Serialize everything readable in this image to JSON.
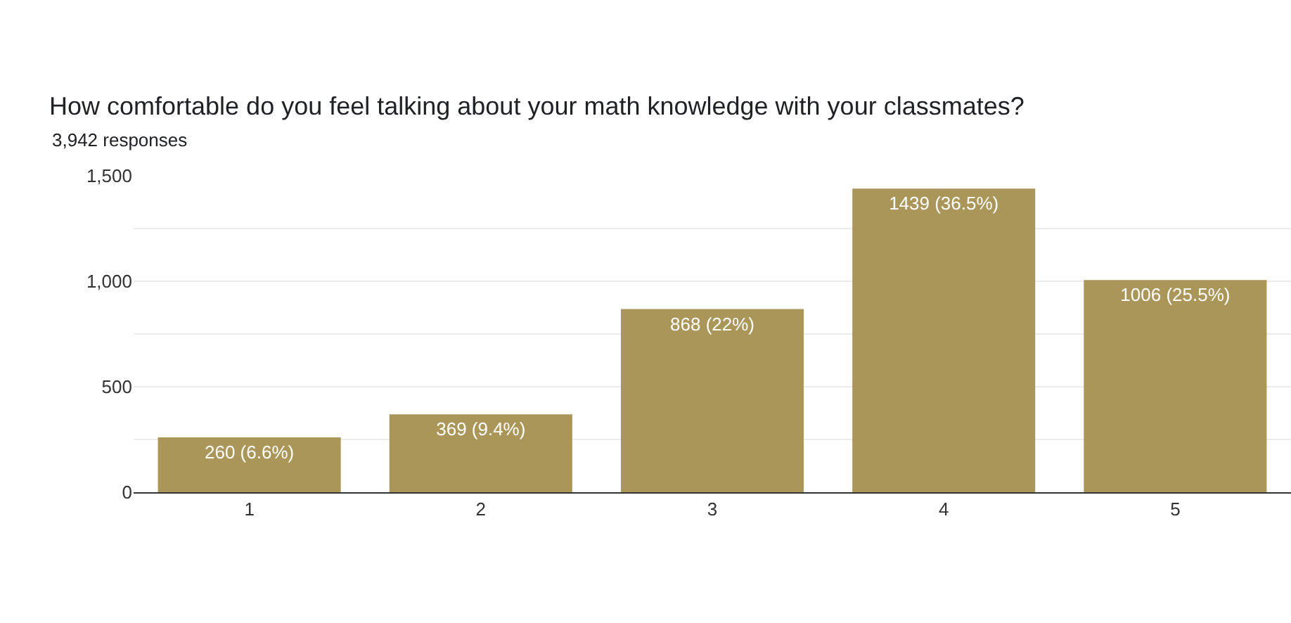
{
  "chart_data": {
    "type": "bar",
    "title": "How comfortable do you feel talking about your math knowledge with your classmates?",
    "subtitle": "3,942 responses",
    "categories": [
      "1",
      "2",
      "3",
      "4",
      "5"
    ],
    "values": [
      260,
      369,
      868,
      1439,
      1006
    ],
    "value_labels": [
      "260 (6.6%)",
      "369 (9.4%)",
      "868 (22%)",
      "1439 (36.5%)",
      "1006 (25.5%)"
    ],
    "color": "#ab965a",
    "ylim": [
      0,
      1500
    ],
    "yticks": [
      0,
      {
        "value": 250,
        "label": null
      },
      500,
      {
        "value": 750,
        "label": null
      },
      {
        "value": 1000,
        "label": "1,000"
      },
      {
        "value": 1250,
        "label": null
      },
      {
        "value": 1500,
        "label": "1,500"
      }
    ],
    "grid": "y",
    "legend": false
  }
}
